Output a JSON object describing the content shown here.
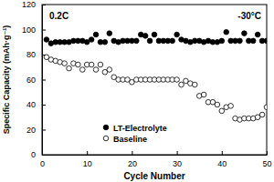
{
  "chart_data": {
    "type": "scatter",
    "x_label": "Cycle Number",
    "y_label": "Specific Capacity (mAh·g⁻¹)",
    "annotations": [
      "0.2C",
      "-30°C"
    ],
    "x": [
      1,
      2,
      3,
      4,
      5,
      6,
      7,
      8,
      9,
      10,
      11,
      12,
      13,
      14,
      15,
      16,
      17,
      18,
      19,
      20,
      21,
      22,
      23,
      24,
      25,
      26,
      27,
      28,
      29,
      30,
      31,
      32,
      33,
      34,
      35,
      36,
      37,
      38,
      39,
      40,
      41,
      42,
      43,
      44,
      45,
      46,
      47,
      48,
      49,
      50
    ],
    "series": [
      {
        "name": "LT-Electrolyte",
        "color": "#000000",
        "marker": "circle",
        "values": [
          92,
          89,
          90,
          90,
          90,
          90,
          91,
          91,
          91,
          90,
          92,
          96,
          90,
          90,
          97,
          91,
          90,
          91,
          91,
          91,
          91,
          96,
          95,
          91,
          96,
          91,
          91,
          91,
          91,
          96,
          92,
          91,
          90,
          91,
          91,
          90,
          91,
          90,
          90,
          91,
          98,
          91,
          91,
          91,
          97,
          91,
          91,
          96,
          91,
          91
        ]
      },
      {
        "name": "Baseline",
        "color": "#000000",
        "marker": "circle-open",
        "values": [
          78,
          76,
          75,
          74,
          73,
          69,
          73,
          72,
          68,
          72,
          72,
          68,
          72,
          66,
          68,
          62,
          60,
          60,
          60,
          58,
          60,
          60,
          60,
          60,
          60,
          60,
          60,
          60,
          60,
          60,
          56,
          59,
          57,
          56,
          47,
          48,
          42,
          42,
          40,
          35,
          38,
          39,
          29,
          28,
          29,
          29,
          29,
          30,
          32,
          38
        ]
      }
    ],
    "xlim": [
      0,
      50
    ],
    "xticks": [
      0,
      10,
      20,
      30,
      40,
      50
    ],
    "ylim": [
      0,
      120
    ],
    "yticks": [
      0,
      20,
      40,
      60,
      80,
      100,
      120
    ],
    "legend": "lower left"
  }
}
